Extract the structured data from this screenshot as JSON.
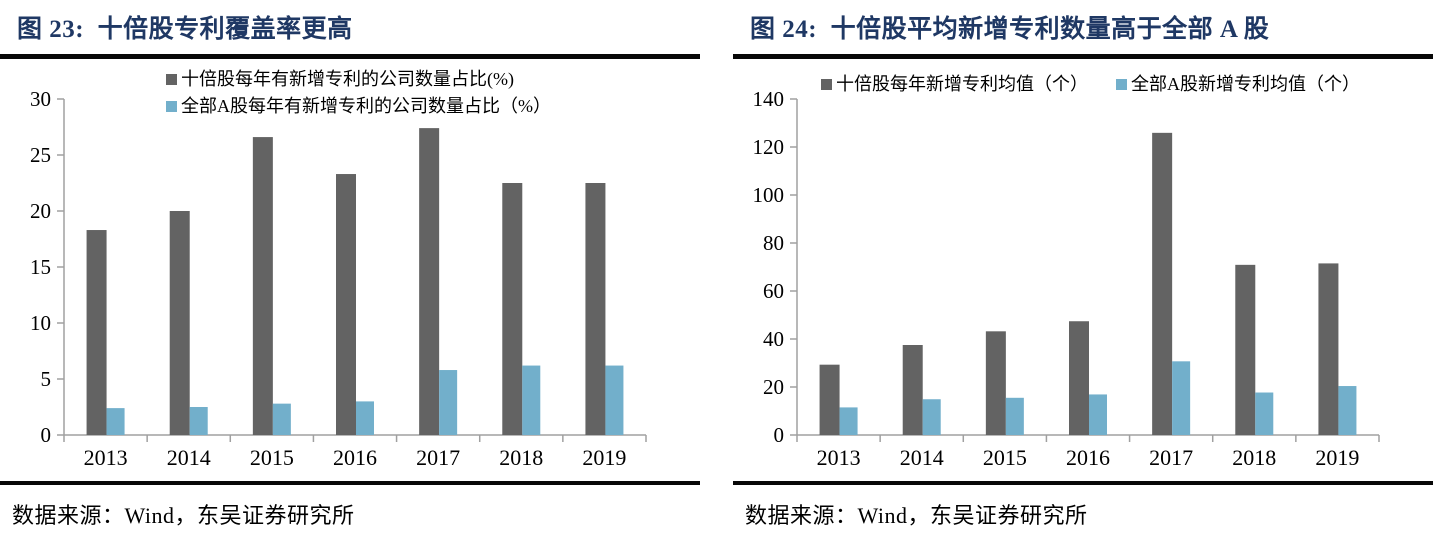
{
  "colors": {
    "title_navy": "#1F3864",
    "series_dark_gray": "#636363",
    "series_light_blue": "#72AFCB",
    "axis_gray": "#A0A0A0",
    "rule_black": "#070707"
  },
  "panels": [
    {
      "title": "图 23:  十倍股专利覆盖率更高",
      "source": "数据来源：Wind，东吴证券研究所",
      "chart_data": {
        "type": "bar",
        "categories": [
          "2013",
          "2014",
          "2015",
          "2016",
          "2017",
          "2018",
          "2019"
        ],
        "series": [
          {
            "name": "十倍股每年有新增专利的公司数量占比(%)",
            "color": "#636363",
            "values": [
              18.3,
              20.0,
              26.6,
              23.3,
              27.4,
              22.5,
              22.5
            ]
          },
          {
            "name": "全部A股每年有新增专利的公司数量占比（%）",
            "color": "#72AFCB",
            "values": [
              2.4,
              2.5,
              2.8,
              3.0,
              5.8,
              6.2,
              6.2
            ]
          }
        ],
        "title": "",
        "xlabel": "",
        "ylabel": "",
        "ylim": [
          0,
          30
        ],
        "yticks": [
          0,
          5,
          10,
          15,
          20,
          25,
          30
        ],
        "grid": false,
        "legend_position": "top-center",
        "legend_layout": "stacked"
      }
    },
    {
      "title": "图 24:  十倍股平均新增专利数量高于全部 A 股",
      "source": "数据来源：Wind，东吴证券研究所",
      "chart_data": {
        "type": "bar",
        "categories": [
          "2013",
          "2014",
          "2015",
          "2016",
          "2017",
          "2018",
          "2019"
        ],
        "series": [
          {
            "name": "十倍股每年新增专利均值（个）",
            "color": "#636363",
            "values": [
              29.3,
              37.5,
              43.2,
              47.4,
              125.9,
              70.9,
              71.5
            ]
          },
          {
            "name": "全部A股新增专利均值（个）",
            "color": "#72AFCB",
            "values": [
              11.5,
              14.9,
              15.5,
              16.9,
              30.7,
              17.7,
              20.4
            ]
          }
        ],
        "title": "",
        "xlabel": "",
        "ylabel": "",
        "ylim": [
          0,
          140
        ],
        "yticks": [
          0,
          20,
          40,
          60,
          80,
          100,
          120,
          140
        ],
        "grid": false,
        "legend_position": "top",
        "legend_layout": "row"
      }
    }
  ]
}
